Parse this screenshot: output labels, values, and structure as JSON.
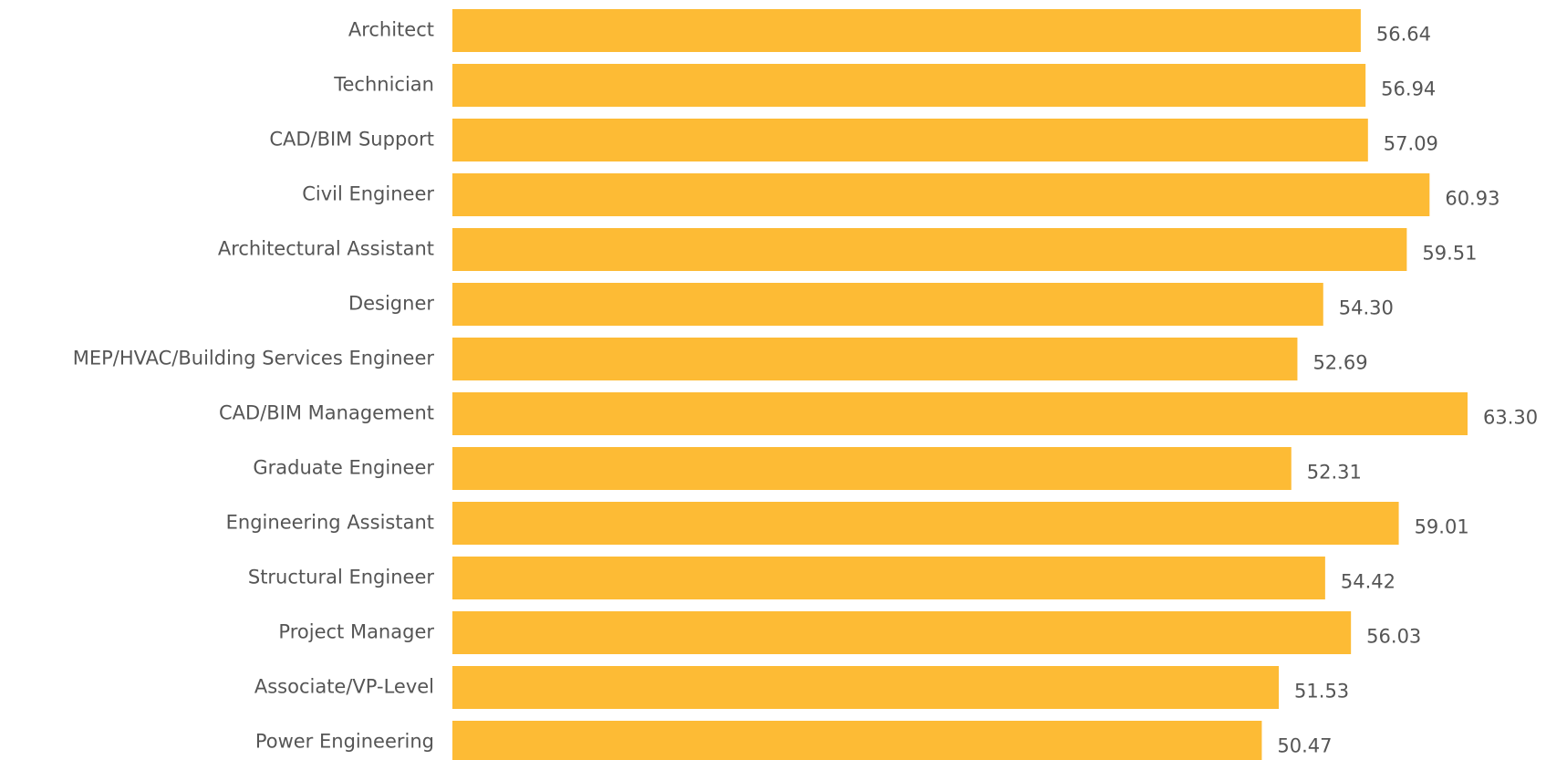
{
  "chart_data": {
    "type": "barh",
    "categories": [
      "Architect",
      "Technician",
      "CAD/BIM Support",
      "Civil Engineer",
      "Architectural Assistant",
      "Designer",
      "MEP/HVAC/Building Services Engineer",
      "CAD/BIM Management",
      "Graduate Engineer",
      "Engineering Assistant",
      "Structural Engineer",
      "Project Manager",
      "Associate/VP-Level",
      "Power Engineering"
    ],
    "values": [
      56.64,
      56.94,
      57.09,
      60.93,
      59.51,
      54.3,
      52.69,
      63.3,
      52.31,
      59.01,
      54.42,
      56.03,
      51.53,
      50.47
    ],
    "value_labels": [
      "56.64",
      "56.94",
      "57.09",
      "60.93",
      "59.51",
      "54.30",
      "52.69",
      "63.30",
      "52.31",
      "59.01",
      "54.42",
      "56.03",
      "51.53",
      "50.47"
    ],
    "color": "#fdbb35"
  }
}
